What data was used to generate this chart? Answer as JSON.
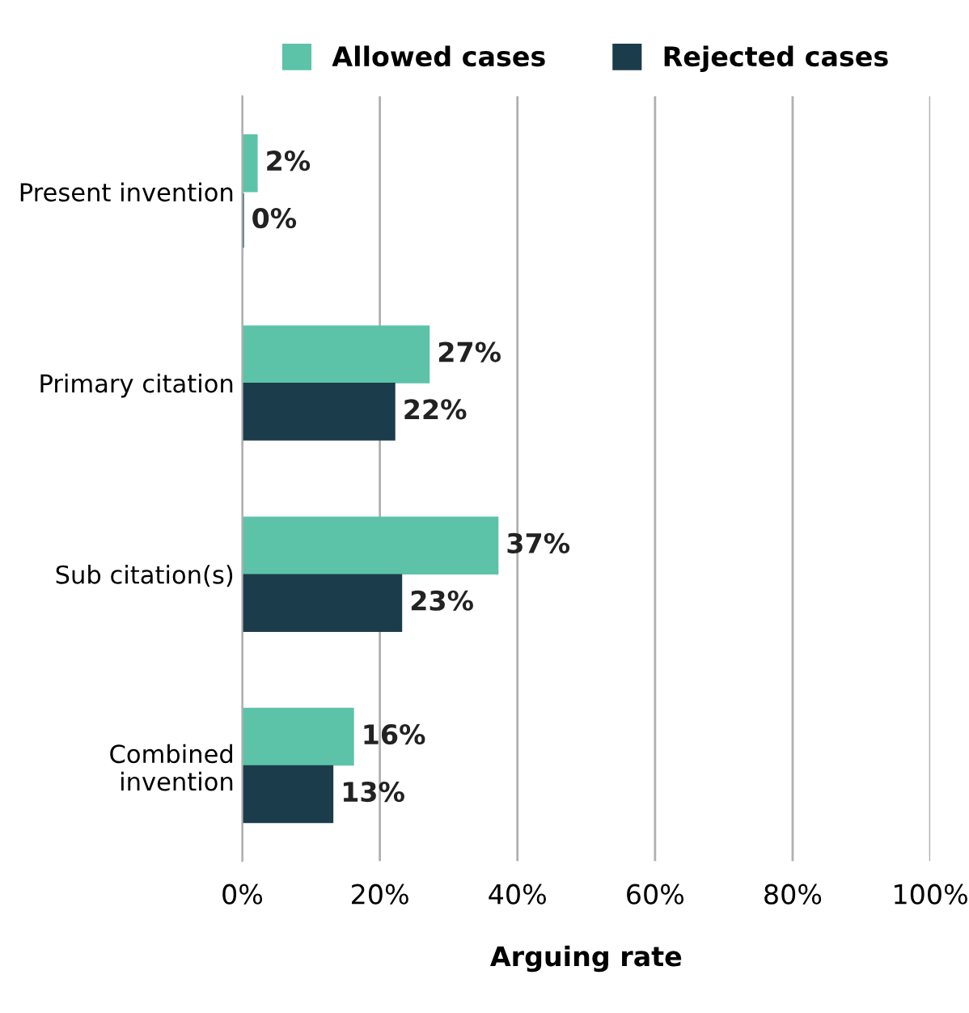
{
  "chart_data": {
    "type": "bar",
    "orientation": "horizontal",
    "xlabel": "Arguing rate",
    "categories": [
      "Present invention",
      "Primary citation",
      "Sub citation(s)",
      "Combined\ninvention"
    ],
    "series": [
      {
        "name": "Allowed cases",
        "color": "#5cc3a9",
        "values": [
          2,
          27,
          37,
          16
        ],
        "value_labels": [
          "2%",
          "27%",
          "37%",
          "16%"
        ]
      },
      {
        "name": "Rejected cases",
        "color": "#1b3c4b",
        "values": [
          0,
          22,
          23,
          13
        ],
        "value_labels": [
          "0%",
          "22%",
          "23%",
          "13%"
        ]
      }
    ],
    "xlim": [
      0,
      100
    ],
    "xticks": [
      {
        "value": 0,
        "label": "0%"
      },
      {
        "value": 20,
        "label": "20%"
      },
      {
        "value": 40,
        "label": "40%"
      },
      {
        "value": 60,
        "label": "60%"
      },
      {
        "value": 80,
        "label": "80%"
      },
      {
        "value": 100,
        "label": "100%"
      }
    ],
    "grid": "x",
    "legend": "top"
  }
}
